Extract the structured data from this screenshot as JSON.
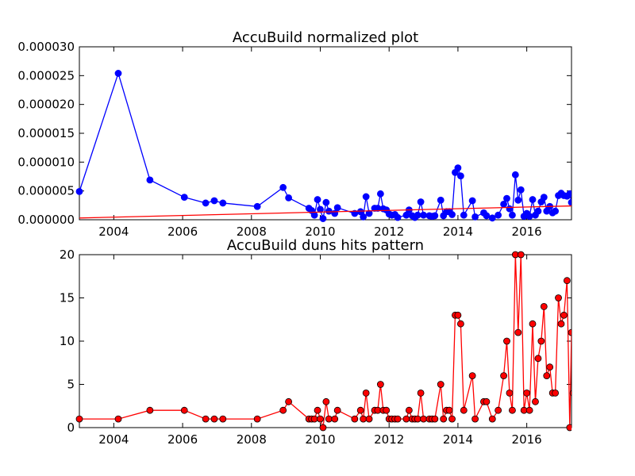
{
  "chart_data": [
    {
      "type": "line",
      "title": "AccuBuild normalized plot",
      "xlabel": "",
      "ylabel": "",
      "xlim": [
        2003.0,
        2017.3
      ],
      "ylim": [
        0,
        3e-05
      ],
      "xticks": [
        2004,
        2006,
        2008,
        2010,
        2012,
        2014,
        2016
      ],
      "xtick_labels": [
        "2004",
        "2006",
        "2008",
        "2010",
        "2012",
        "2014",
        "2016"
      ],
      "yticks": [
        0,
        5e-06,
        1e-05,
        1.5e-05,
        2e-05,
        2.5e-05,
        3e-05
      ],
      "ytick_labels": [
        "0.000000",
        "0.000005",
        "0.000010",
        "0.000015",
        "0.000020",
        "0.000025",
        "0.000030"
      ],
      "grid": false,
      "colors": {
        "series": "#0000ff",
        "trend": "#ff0000"
      },
      "series": [
        {
          "marker": "circle",
          "points": [
            [
              2003.0,
              4.9e-06
            ],
            [
              2004.13,
              2.54e-05
            ],
            [
              2005.05,
              6.9e-06
            ],
            [
              2006.05,
              3.9e-06
            ],
            [
              2006.67,
              2.9e-06
            ],
            [
              2006.92,
              3.3e-06
            ],
            [
              2007.17,
              2.9e-06
            ],
            [
              2008.17,
              2.3e-06
            ],
            [
              2008.92,
              5.6e-06
            ],
            [
              2009.08,
              3.8e-06
            ],
            [
              2009.67,
              2e-06
            ],
            [
              2009.75,
              1.6e-06
            ],
            [
              2009.83,
              8e-07
            ],
            [
              2009.92,
              3.5e-06
            ],
            [
              2010.0,
              1.8e-06
            ],
            [
              2010.08,
              2e-07
            ],
            [
              2010.17,
              3e-06
            ],
            [
              2010.25,
              1.5e-06
            ],
            [
              2010.42,
              1.1e-06
            ],
            [
              2010.5,
              2.1e-06
            ],
            [
              2011.0,
              1.1e-06
            ],
            [
              2011.17,
              1.4e-06
            ],
            [
              2011.25,
              5e-07
            ],
            [
              2011.33,
              4e-06
            ],
            [
              2011.42,
              1.1e-06
            ],
            [
              2011.58,
              2e-06
            ],
            [
              2011.67,
              2e-06
            ],
            [
              2011.75,
              4.5e-06
            ],
            [
              2011.83,
              1.9e-06
            ],
            [
              2011.92,
              1.7e-06
            ],
            [
              2012.0,
              1e-06
            ],
            [
              2012.08,
              8e-07
            ],
            [
              2012.17,
              9e-07
            ],
            [
              2012.25,
              4e-07
            ],
            [
              2012.5,
              8e-07
            ],
            [
              2012.58,
              1.7e-06
            ],
            [
              2012.67,
              7e-07
            ],
            [
              2012.75,
              4e-07
            ],
            [
              2012.83,
              8e-07
            ],
            [
              2012.92,
              3.1e-06
            ],
            [
              2013.0,
              8e-07
            ],
            [
              2013.17,
              7e-07
            ],
            [
              2013.25,
              6e-07
            ],
            [
              2013.33,
              7e-07
            ],
            [
              2013.5,
              3.4e-06
            ],
            [
              2013.58,
              7e-07
            ],
            [
              2013.67,
              1.4e-06
            ],
            [
              2013.75,
              1.4e-06
            ],
            [
              2013.83,
              9e-07
            ],
            [
              2013.92,
              8.2e-06
            ],
            [
              2014.0,
              9e-06
            ],
            [
              2014.08,
              7.6e-06
            ],
            [
              2014.17,
              8e-07
            ],
            [
              2014.42,
              3.3e-06
            ],
            [
              2014.5,
              5e-07
            ],
            [
              2014.75,
              1.2e-06
            ],
            [
              2014.83,
              7e-07
            ],
            [
              2015.0,
              3e-07
            ],
            [
              2015.17,
              8e-07
            ],
            [
              2015.33,
              2.7e-06
            ],
            [
              2015.42,
              3.7e-06
            ],
            [
              2015.5,
              1.9e-06
            ],
            [
              2015.58,
              8e-07
            ],
            [
              2015.67,
              7.8e-06
            ],
            [
              2015.75,
              3.4e-06
            ],
            [
              2015.83,
              5.2e-06
            ],
            [
              2015.92,
              6e-07
            ],
            [
              2016.0,
              1.1e-06
            ],
            [
              2016.08,
              6e-07
            ],
            [
              2016.17,
              3.5e-06
            ],
            [
              2016.25,
              8e-07
            ],
            [
              2016.33,
              1.5e-06
            ],
            [
              2016.42,
              3.1e-06
            ],
            [
              2016.5,
              3.9e-06
            ],
            [
              2016.58,
              1.5e-06
            ],
            [
              2016.67,
              2.3e-06
            ],
            [
              2016.75,
              1.2e-06
            ],
            [
              2016.83,
              1.5e-06
            ],
            [
              2016.92,
              4.2e-06
            ],
            [
              2017.0,
              4.6e-06
            ],
            [
              2017.08,
              4.2e-06
            ],
            [
              2017.17,
              4.1e-06
            ],
            [
              2017.25,
              4.5e-06
            ],
            [
              2017.3,
              3e-06
            ]
          ]
        },
        {
          "line_only": true,
          "points": [
            [
              2003.0,
              3e-07
            ],
            [
              2017.3,
              2.4e-06
            ]
          ]
        }
      ]
    },
    {
      "type": "line",
      "title": "AccuBuild duns hits pattern",
      "xlabel": "",
      "ylabel": "",
      "xlim": [
        2003.0,
        2017.3
      ],
      "ylim": [
        0,
        20
      ],
      "xticks": [
        2004,
        2006,
        2008,
        2010,
        2012,
        2014,
        2016
      ],
      "xtick_labels": [
        "2004",
        "2006",
        "2008",
        "2010",
        "2012",
        "2014",
        "2016"
      ],
      "yticks": [
        0,
        5,
        10,
        15,
        20
      ],
      "ytick_labels": [
        "0",
        "5",
        "10",
        "15",
        "20"
      ],
      "grid": false,
      "colors": {
        "series": "#ff0000",
        "marker_edge": "#000000"
      },
      "series": [
        {
          "marker": "circle",
          "points": [
            [
              2003.0,
              1
            ],
            [
              2004.13,
              1
            ],
            [
              2005.05,
              2
            ],
            [
              2006.05,
              2
            ],
            [
              2006.67,
              1
            ],
            [
              2006.92,
              1
            ],
            [
              2007.17,
              1
            ],
            [
              2008.17,
              1
            ],
            [
              2008.92,
              2
            ],
            [
              2009.08,
              3
            ],
            [
              2009.67,
              1
            ],
            [
              2009.75,
              1
            ],
            [
              2009.83,
              1
            ],
            [
              2009.92,
              2
            ],
            [
              2010.0,
              1
            ],
            [
              2010.08,
              0
            ],
            [
              2010.17,
              3
            ],
            [
              2010.25,
              1
            ],
            [
              2010.42,
              1
            ],
            [
              2010.5,
              2
            ],
            [
              2011.0,
              1
            ],
            [
              2011.17,
              2
            ],
            [
              2011.25,
              1
            ],
            [
              2011.33,
              4
            ],
            [
              2011.42,
              1
            ],
            [
              2011.58,
              2
            ],
            [
              2011.67,
              2
            ],
            [
              2011.75,
              5
            ],
            [
              2011.83,
              2
            ],
            [
              2011.92,
              2
            ],
            [
              2012.0,
              1
            ],
            [
              2012.08,
              1
            ],
            [
              2012.17,
              1
            ],
            [
              2012.25,
              1
            ],
            [
              2012.5,
              1
            ],
            [
              2012.58,
              2
            ],
            [
              2012.67,
              1
            ],
            [
              2012.75,
              1
            ],
            [
              2012.83,
              1
            ],
            [
              2012.92,
              4
            ],
            [
              2013.0,
              1
            ],
            [
              2013.17,
              1
            ],
            [
              2013.25,
              1
            ],
            [
              2013.33,
              1
            ],
            [
              2013.5,
              5
            ],
            [
              2013.58,
              1
            ],
            [
              2013.67,
              2
            ],
            [
              2013.75,
              2
            ],
            [
              2013.83,
              1
            ],
            [
              2013.92,
              13
            ],
            [
              2014.0,
              13
            ],
            [
              2014.08,
              12
            ],
            [
              2014.17,
              2
            ],
            [
              2014.42,
              6
            ],
            [
              2014.5,
              1
            ],
            [
              2014.75,
              3
            ],
            [
              2014.83,
              3
            ],
            [
              2015.0,
              1
            ],
            [
              2015.17,
              2
            ],
            [
              2015.33,
              6
            ],
            [
              2015.42,
              10
            ],
            [
              2015.5,
              4
            ],
            [
              2015.58,
              2
            ],
            [
              2015.67,
              20
            ],
            [
              2015.75,
              11
            ],
            [
              2015.83,
              20
            ],
            [
              2015.92,
              2
            ],
            [
              2016.0,
              4
            ],
            [
              2016.08,
              2
            ],
            [
              2016.17,
              12
            ],
            [
              2016.25,
              3
            ],
            [
              2016.33,
              8
            ],
            [
              2016.42,
              10
            ],
            [
              2016.5,
              14
            ],
            [
              2016.58,
              6
            ],
            [
              2016.67,
              7
            ],
            [
              2016.75,
              4
            ],
            [
              2016.83,
              4
            ],
            [
              2016.92,
              15
            ],
            [
              2017.0,
              12
            ],
            [
              2017.08,
              13
            ],
            [
              2017.17,
              17
            ],
            [
              2017.25,
              0
            ],
            [
              2017.3,
              11
            ],
            [
              2017.35,
              4
            ]
          ]
        }
      ]
    }
  ]
}
